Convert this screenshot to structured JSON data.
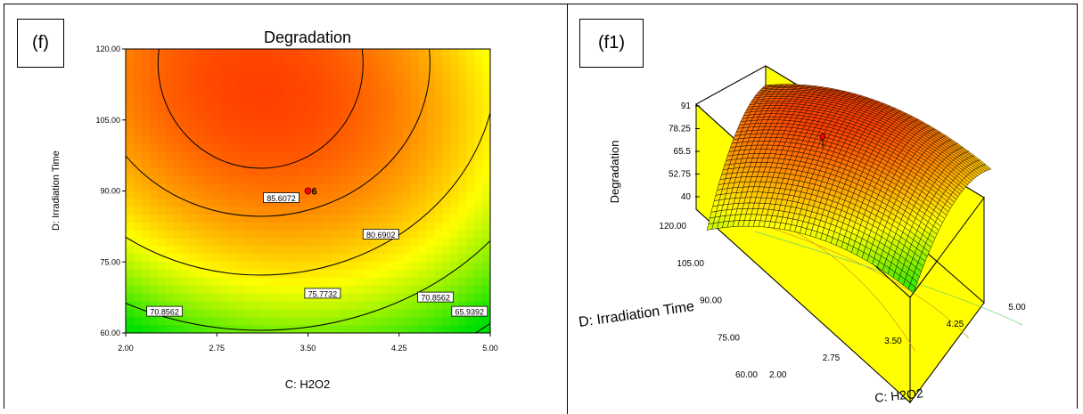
{
  "panels": {
    "left_label": "(f)",
    "right_label": "(f1)"
  },
  "chart_data": [
    {
      "type": "heatmap",
      "subtype": "contour",
      "title": "Degradation",
      "xlabel": "C: H2O2",
      "ylabel": "D: Irradiation Time",
      "xlim": [
        2.0,
        5.0
      ],
      "ylim": [
        60.0,
        120.0
      ],
      "xticks": [
        "2.00",
        "2.75",
        "3.50",
        "4.25",
        "5.00"
      ],
      "yticks": [
        "60.00",
        "75.00",
        "90.00",
        "105.00",
        "120.00"
      ],
      "contour_levels": [
        "85.6072",
        "80.6902",
        "75.7732",
        "70.8562",
        "65.9392"
      ],
      "contour_labels": [
        {
          "text": "85.6072",
          "x": 3.28,
          "y": 88.5
        },
        {
          "text": "80.6902",
          "x": 4.1,
          "y": 80.8
        },
        {
          "text": "75.7732",
          "x": 3.62,
          "y": 68.3
        },
        {
          "text": "70.8562",
          "x": 4.55,
          "y": 67.5
        },
        {
          "text": "70.8562",
          "x": 2.32,
          "y": 64.5
        },
        {
          "text": "65.9392",
          "x": 4.83,
          "y": 64.5
        }
      ],
      "design_point": {
        "x": 3.5,
        "y": 90.0,
        "label": "6"
      },
      "colorscale": [
        "#00e000",
        "#ffff00",
        "#ff4000"
      ],
      "grid": false
    },
    {
      "type": "heatmap",
      "subtype": "surface3d",
      "zlabel": "Degradation",
      "xlabel": "C: H2O2",
      "ylabel": "D: Irradiation Time",
      "zticks": [
        "40",
        "52.75",
        "65.5",
        "78.25",
        "91"
      ],
      "xticks": [
        "2.00",
        "2.75",
        "3.50",
        "4.25",
        "5.00"
      ],
      "yticks": [
        "60.00",
        "75.00",
        "90.00",
        "105.00",
        "120.00"
      ],
      "zlim": [
        40,
        91
      ],
      "xlim": [
        2.0,
        5.0
      ],
      "ylim": [
        60.0,
        120.0
      ],
      "colorscale": [
        "#00e000",
        "#ffff00",
        "#ff4000"
      ],
      "floor_color": "#ffff00"
    }
  ]
}
